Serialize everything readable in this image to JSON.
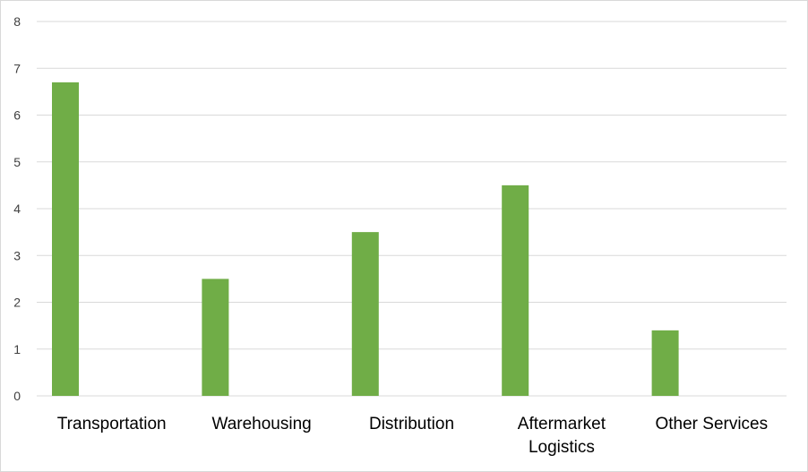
{
  "chart_data": {
    "type": "bar",
    "title": "",
    "xlabel": "",
    "ylabel": "",
    "categories": [
      "Transportation",
      "Warehousing",
      "Distribution",
      "Aftermarket Logistics",
      "Other Services"
    ],
    "category_lines": [
      [
        "Transportation"
      ],
      [
        "Warehousing"
      ],
      [
        "Distribution"
      ],
      [
        "Aftermarket",
        "Logistics"
      ],
      [
        "Other Services"
      ]
    ],
    "values": [
      6.7,
      2.5,
      3.5,
      4.5,
      1.4
    ],
    "ylim": [
      0,
      8
    ],
    "yticks": [
      0,
      1,
      2,
      3,
      4,
      5,
      6,
      7,
      8
    ],
    "grid": true,
    "legend": "none",
    "bar_color": "#70ad47",
    "grid_color": "#d9d9d9"
  }
}
